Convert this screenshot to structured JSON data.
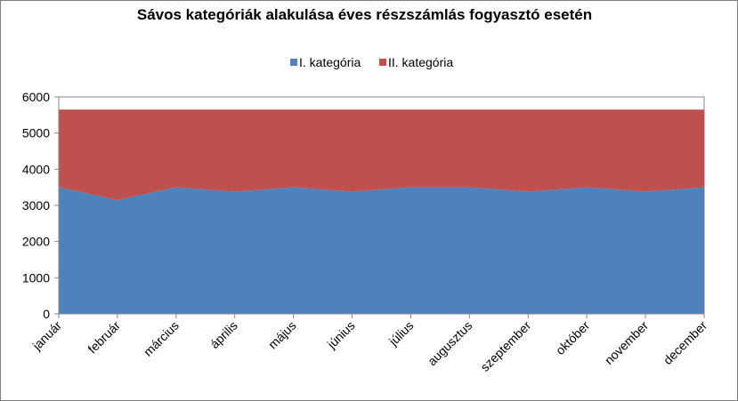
{
  "chart_data": {
    "type": "area",
    "stacked": true,
    "title": "Sávos kategóriák alakulása éves részszámlás fogyasztó esetén",
    "xlabel": "",
    "ylabel": "",
    "ylim": [
      0,
      6000
    ],
    "yticks": [
      0,
      1000,
      2000,
      3000,
      4000,
      5000,
      6000
    ],
    "grid": false,
    "legend_position": "top",
    "categories": [
      "január",
      "február",
      "március",
      "április",
      "május",
      "június",
      "július",
      "augusztus",
      "szeptember",
      "október",
      "november",
      "december"
    ],
    "series": [
      {
        "name": "I. kategória",
        "color": "#4f81bd",
        "values": [
          3500,
          3150,
          3500,
          3380,
          3500,
          3380,
          3500,
          3500,
          3380,
          3500,
          3380,
          3500
        ]
      },
      {
        "name": "II. kategória",
        "color": "#c0504d",
        "values": [
          2150,
          2500,
          2150,
          2270,
          2150,
          2270,
          2150,
          2150,
          2270,
          2150,
          2270,
          2150
        ]
      }
    ]
  }
}
